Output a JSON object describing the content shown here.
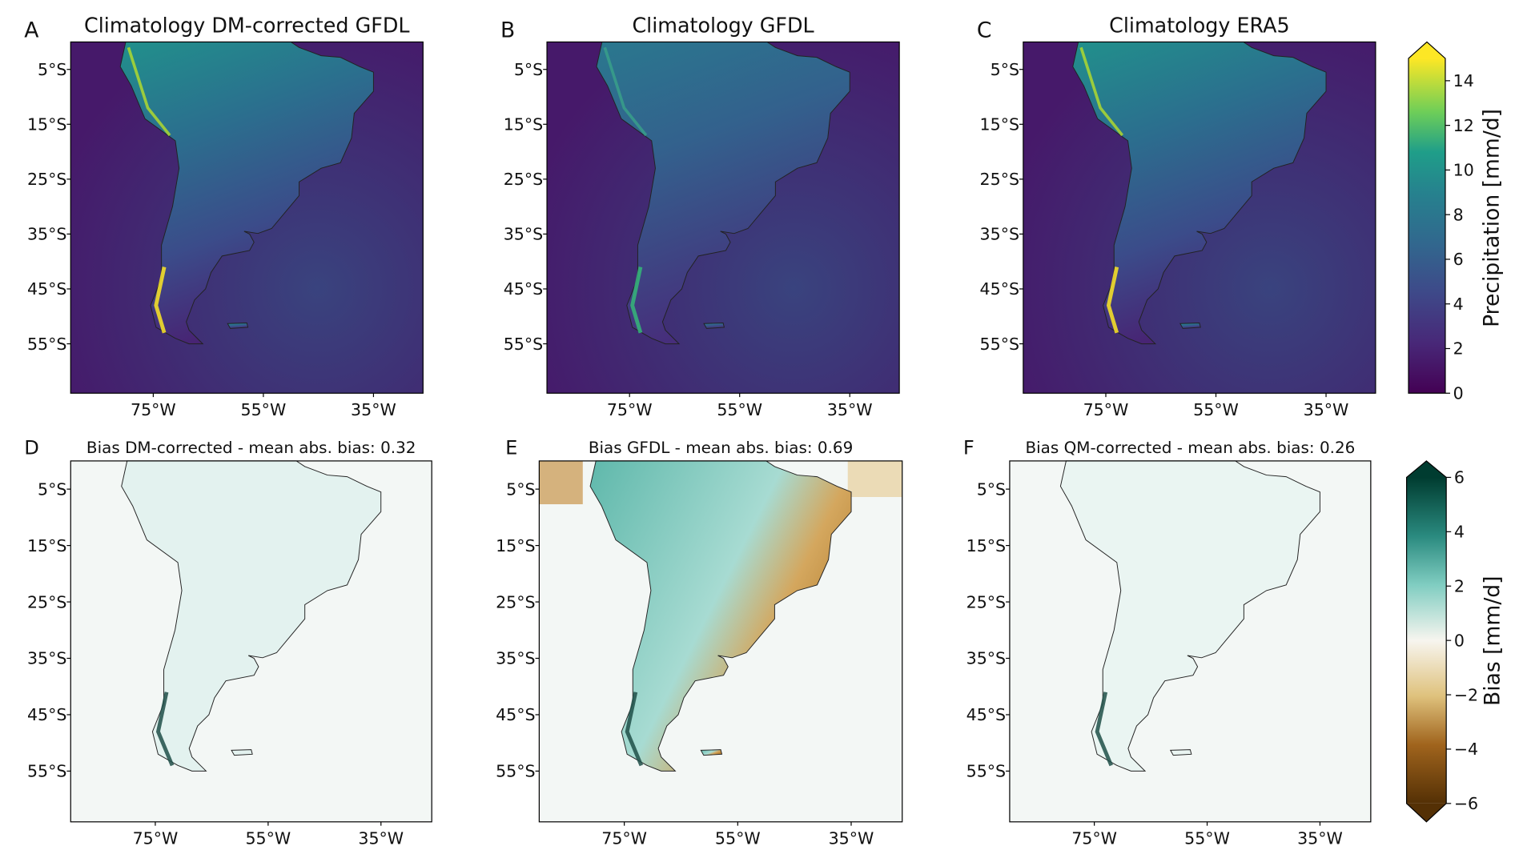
{
  "panels": [
    {
      "letter": "A",
      "title": "Climatology DM-corrected GFDL"
    },
    {
      "letter": "B",
      "title": "Climatology GFDL"
    },
    {
      "letter": "C",
      "title": "Climatology ERA5"
    },
    {
      "letter": "D",
      "title": "Bias DM-corrected - mean abs. bias: 0.32"
    },
    {
      "letter": "E",
      "title": "Bias GFDL - mean abs. bias: 0.69"
    },
    {
      "letter": "F",
      "title": "Bias QM-corrected - mean abs. bias: 0.26"
    }
  ],
  "lon_range": [
    -90,
    -26
  ],
  "lat_range": [
    -64,
    0
  ],
  "lat_ticks": [
    {
      "value": -5,
      "label": "5°S"
    },
    {
      "value": -15,
      "label": "15°S"
    },
    {
      "value": -25,
      "label": "25°S"
    },
    {
      "value": -35,
      "label": "35°S"
    },
    {
      "value": -45,
      "label": "45°S"
    },
    {
      "value": -55,
      "label": "55°S"
    }
  ],
  "lon_ticks": [
    {
      "value": -75,
      "label": "75°W"
    },
    {
      "value": -55,
      "label": "55°W"
    },
    {
      "value": -35,
      "label": "35°W"
    }
  ],
  "colorbars": [
    {
      "label": "Precipitation [mm/d]",
      "range": [
        0,
        15
      ],
      "ticks": [
        0,
        2,
        4,
        6,
        8,
        10,
        12,
        14
      ]
    },
    {
      "label": "Bias [mm/d]",
      "range": [
        -6,
        6
      ],
      "ticks": [
        {
          "value": -6,
          "label": "−6"
        },
        {
          "value": -4,
          "label": "−4"
        },
        {
          "value": -2,
          "label": "−2"
        },
        0,
        2,
        4,
        6
      ]
    }
  ]
}
